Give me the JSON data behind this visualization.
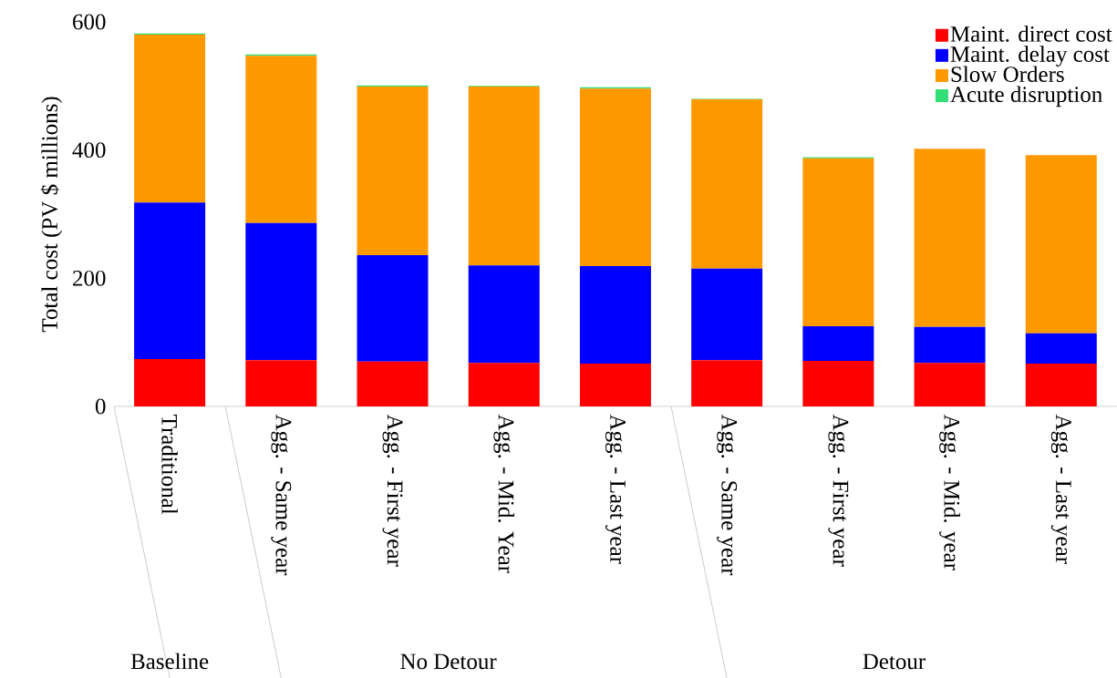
{
  "chart_data": {
    "type": "bar",
    "stacked": true,
    "ylabel": "Total cost (PV $ millions)",
    "categories": [
      "Traditional",
      "Agg. - Same year",
      "Agg. - First year",
      "Agg. - Mid. Year",
      "Agg. - Last year",
      "Agg. - Same year",
      "Agg. - First year",
      "Agg. - Mid. year",
      "Agg. - Last year"
    ],
    "series": [
      {
        "name": "Maint. direct cost",
        "color": "#ff0000",
        "values": [
          74,
          72,
          70,
          68,
          67,
          72,
          71,
          68,
          67
        ]
      },
      {
        "name": "Maint. delay cost",
        "color": "#0000ff",
        "values": [
          244,
          214,
          166,
          152,
          152,
          143,
          54,
          56,
          47
        ]
      },
      {
        "name": "Slow Orders",
        "color": "#ff9900",
        "values": [
          262,
          261,
          263,
          279,
          277,
          264,
          262,
          278,
          278
        ]
      },
      {
        "name": "Acute disruption",
        "color": "#33dd77",
        "values": [
          2,
          2,
          2,
          1,
          2,
          1,
          2,
          0,
          0
        ]
      }
    ],
    "ylim": [
      0,
      600
    ],
    "yticks": [
      0,
      200,
      400,
      600
    ],
    "grid": false,
    "legend": "top right",
    "annotations": [
      "Baseline",
      "No Detour",
      "Detour"
    ]
  }
}
